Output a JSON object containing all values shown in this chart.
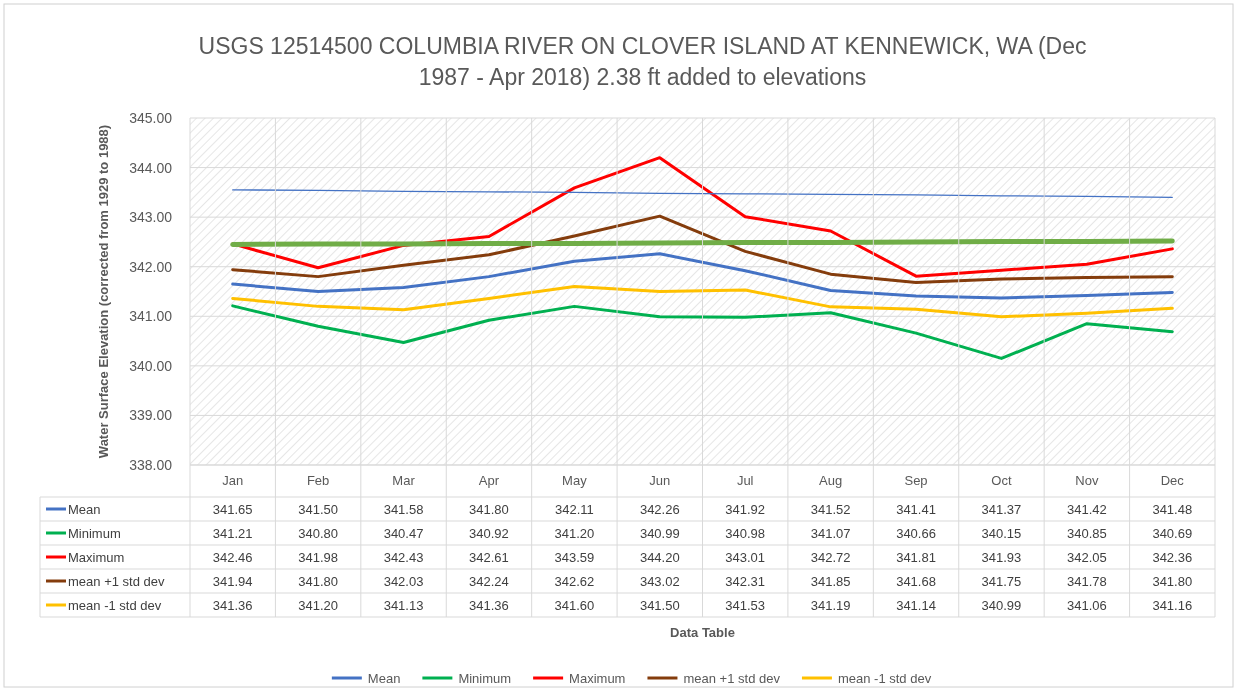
{
  "chart_data": {
    "type": "line",
    "title": "USGS 12514500 COLUMBIA RIVER ON CLOVER ISLAND AT KENNEWICK, WA (Dec 1987 - Apr 2018) 2.38 ft added to elevations",
    "annotations": [
      "Data Table"
    ],
    "ylabel": "Water Surface Elevation (corrected from 1929 to 1988)",
    "categories": [
      "Jan",
      "Feb",
      "Mar",
      "Apr",
      "May",
      "Jun",
      "Jul",
      "Aug",
      "Sep",
      "Oct",
      "Nov",
      "Dec"
    ],
    "ylim": [
      338,
      345
    ],
    "yticks": [
      {
        "value": 338,
        "label": "338.00"
      },
      {
        "value": 339,
        "label": "339.00"
      },
      {
        "value": 340,
        "label": "340.00"
      },
      {
        "value": 341,
        "label": "341.00"
      },
      {
        "value": 342,
        "label": "342.00"
      },
      {
        "value": 343,
        "label": "343.00"
      },
      {
        "value": 344,
        "label": "344.00"
      },
      {
        "value": 345,
        "label": "345.00"
      }
    ],
    "grid": "y",
    "legend": "bottom",
    "marker": "none",
    "line_style": "solid",
    "series": [
      {
        "name": "Mean",
        "color": "#4472c4",
        "values": [
          341.65,
          341.5,
          341.58,
          341.8,
          342.11,
          342.26,
          341.92,
          341.52,
          341.41,
          341.37,
          341.42,
          341.48
        ],
        "value_labels": [
          "341.65",
          "341.50",
          "341.58",
          "341.80",
          "342.11",
          "342.26",
          "341.92",
          "341.52",
          "341.41",
          "341.37",
          "341.42",
          "341.48"
        ]
      },
      {
        "name": "Minimum",
        "color": "#00b050",
        "values": [
          341.21,
          340.8,
          340.47,
          340.92,
          341.2,
          340.99,
          340.98,
          341.07,
          340.66,
          340.15,
          340.85,
          340.69
        ],
        "value_labels": [
          "341.21",
          "340.80",
          "340.47",
          "340.92",
          "341.20",
          "340.99",
          "340.98",
          "341.07",
          "340.66",
          "340.15",
          "340.85",
          "340.69"
        ]
      },
      {
        "name": "Maximum",
        "color": "#ff0000",
        "values": [
          342.46,
          341.98,
          342.43,
          342.61,
          343.59,
          344.2,
          343.01,
          342.72,
          341.81,
          341.93,
          342.05,
          342.36
        ],
        "value_labels": [
          "342.46",
          "341.98",
          "342.43",
          "342.61",
          "343.59",
          "344.20",
          "343.01",
          "342.72",
          "341.81",
          "341.93",
          "342.05",
          "342.36"
        ]
      },
      {
        "name": "mean +1 std dev",
        "color": "#843c0c",
        "values": [
          341.94,
          341.8,
          342.03,
          342.24,
          342.62,
          343.02,
          342.31,
          341.85,
          341.68,
          341.75,
          341.78,
          341.8
        ],
        "value_labels": [
          "341.94",
          "341.80",
          "342.03",
          "342.24",
          "342.62",
          "343.02",
          "342.31",
          "341.85",
          "341.68",
          "341.75",
          "341.78",
          "341.80"
        ]
      },
      {
        "name": "mean -1 std dev",
        "color": "#ffc000",
        "values": [
          341.36,
          341.2,
          341.13,
          341.36,
          341.6,
          341.5,
          341.53,
          341.19,
          341.14,
          340.99,
          341.06,
          341.16
        ],
        "value_labels": [
          "341.36",
          "341.20",
          "341.13",
          "341.36",
          "341.60",
          "341.50",
          "341.53",
          "341.19",
          "341.14",
          "340.99",
          "341.06",
          "341.16"
        ]
      },
      {
        "color": "#4472c4",
        "values": [
          343.55,
          343.54,
          343.52,
          343.51,
          343.5,
          343.48,
          343.47,
          343.46,
          343.45,
          343.43,
          343.42,
          343.4
        ]
      },
      {
        "color": "#70ad47",
        "values": [
          342.45,
          342.46,
          342.46,
          342.47,
          342.47,
          342.48,
          342.49,
          342.49,
          342.5,
          342.51,
          342.51,
          342.52
        ]
      }
    ]
  }
}
